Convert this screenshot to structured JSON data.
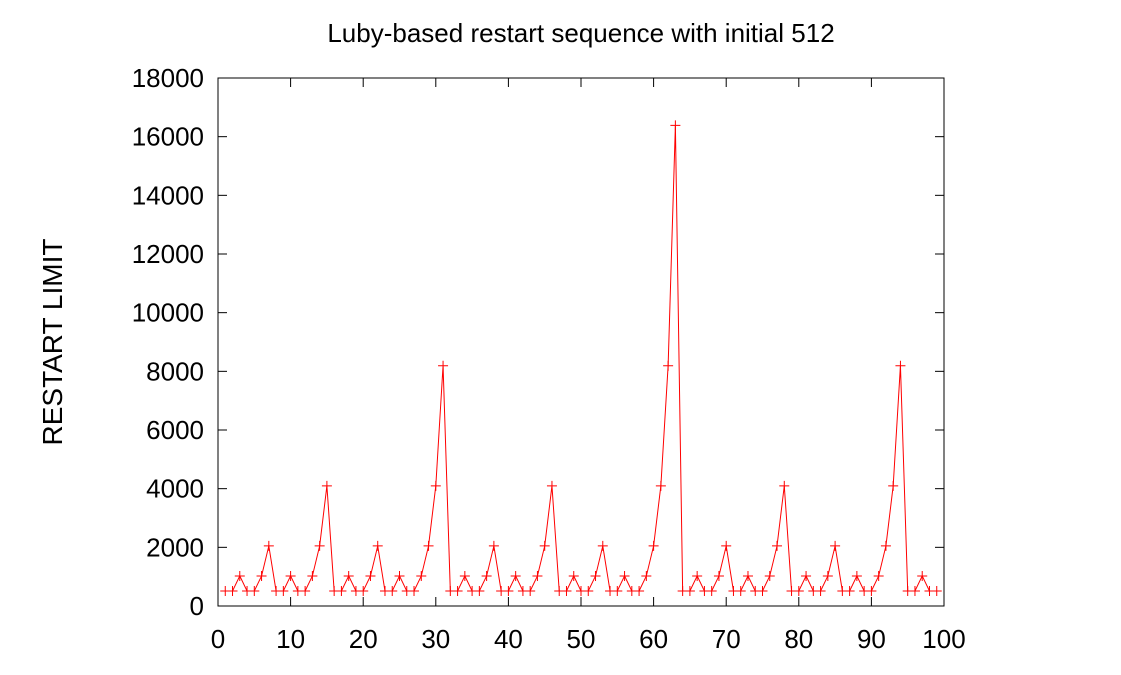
{
  "chart_data": {
    "type": "line",
    "title": "Luby-based restart sequence with initial 512",
    "xlabel": "",
    "ylabel": "RESTART LIMIT",
    "xlim": [
      0,
      100
    ],
    "ylim": [
      0,
      18000
    ],
    "xticks": [
      "0",
      "10",
      "20",
      "30",
      "40",
      "50",
      "60",
      "70",
      "80",
      "90",
      "100"
    ],
    "yticks": [
      "0",
      "2000",
      "4000",
      "6000",
      "8000",
      "10000",
      "12000",
      "14000",
      "16000",
      "18000"
    ],
    "grid": false,
    "legend": "none",
    "marker": "plus",
    "line_color": "#ff0000",
    "series": [
      {
        "x": [
          1,
          2,
          3,
          4,
          5,
          6,
          7,
          8,
          9,
          10,
          11,
          12,
          13,
          14,
          15,
          16,
          17,
          18,
          19,
          20,
          21,
          22,
          23,
          24,
          25,
          26,
          27,
          28,
          29,
          30,
          31,
          32,
          33,
          34,
          35,
          36,
          37,
          38,
          39,
          40,
          41,
          42,
          43,
          44,
          45,
          46,
          47,
          48,
          49,
          50,
          51,
          52,
          53,
          54,
          55,
          56,
          57,
          58,
          59,
          60,
          61,
          62,
          63,
          64,
          65,
          66,
          67,
          68,
          69,
          70,
          71,
          72,
          73,
          74,
          75,
          76,
          77,
          78,
          79,
          80,
          81,
          82,
          83,
          84,
          85,
          86,
          87,
          88,
          89,
          90,
          91,
          92,
          93,
          94,
          95,
          96,
          97,
          98,
          99
        ],
        "values": [
          512,
          512,
          1024,
          512,
          512,
          1024,
          2048,
          512,
          512,
          1024,
          512,
          512,
          1024,
          2048,
          4096,
          512,
          512,
          1024,
          512,
          512,
          1024,
          2048,
          512,
          512,
          1024,
          512,
          512,
          1024,
          2048,
          4096,
          8192,
          512,
          512,
          1024,
          512,
          512,
          1024,
          2048,
          512,
          512,
          1024,
          512,
          512,
          1024,
          2048,
          4096,
          512,
          512,
          1024,
          512,
          512,
          1024,
          2048,
          512,
          512,
          1024,
          512,
          512,
          1024,
          2048,
          4096,
          8192,
          16384,
          512,
          512,
          1024,
          512,
          512,
          1024,
          2048,
          512,
          512,
          1024,
          512,
          512,
          1024,
          2048,
          4096,
          512,
          512,
          1024,
          512,
          512,
          1024,
          2048,
          512,
          512,
          1024,
          512,
          512,
          1024,
          2048,
          4096,
          8192,
          512,
          512,
          1024,
          512,
          512
        ]
      }
    ]
  }
}
